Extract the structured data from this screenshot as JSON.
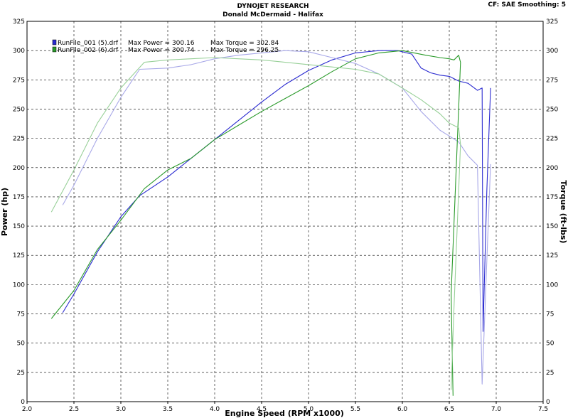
{
  "header": {
    "company": "DYNOJET RESEARCH",
    "customer": "Donald McDermaid - Halifax",
    "info": "CF: SAE  Smoothing: 5"
  },
  "legend": [
    {
      "file": "RunFile_001 (5).drf",
      "power_text": "Max Power = 300.16",
      "torque_text": "Max Torque = 302.84",
      "color": "#2a2ad0"
    },
    {
      "file": "RunFile_002 (6).drf",
      "power_text": "Max Power = 300.74",
      "torque_text": "Max Torque = 296.25",
      "color": "#2a9a2a"
    }
  ],
  "chart_data": {
    "type": "line",
    "xlabel": "Engine Speed (RPM x1000)",
    "ylabel": "Power (hp)",
    "y2label": "Torque (ft-lbs)",
    "xlim": [
      2.0,
      7.5
    ],
    "ylim": [
      0,
      325
    ],
    "y2lim": [
      0,
      325
    ],
    "x_ticks": [
      "2.0",
      "2.5",
      "3.0",
      "3.5",
      "4.0",
      "4.5",
      "5.0",
      "5.5",
      "6.0",
      "6.5",
      "7.0",
      "7.5"
    ],
    "y_ticks": [
      "0",
      "25",
      "50",
      "75",
      "100",
      "125",
      "150",
      "175",
      "200",
      "225",
      "250",
      "275",
      "300",
      "325"
    ],
    "grid": true,
    "series": [
      {
        "name": "RunFile_001 (5).drf",
        "measure": "power",
        "color": "#2a2ad0",
        "points": [
          [
            2.38,
            76
          ],
          [
            2.5,
            92
          ],
          [
            2.75,
            128
          ],
          [
            3.0,
            158
          ],
          [
            3.2,
            176
          ],
          [
            3.5,
            192
          ],
          [
            3.75,
            208
          ],
          [
            4.0,
            224
          ],
          [
            4.25,
            240
          ],
          [
            4.5,
            256
          ],
          [
            4.75,
            271
          ],
          [
            5.0,
            283
          ],
          [
            5.25,
            292
          ],
          [
            5.5,
            298
          ],
          [
            5.75,
            300
          ],
          [
            5.95,
            300
          ],
          [
            6.1,
            297
          ],
          [
            6.2,
            285
          ],
          [
            6.3,
            281
          ],
          [
            6.4,
            279
          ],
          [
            6.5,
            278
          ],
          [
            6.6,
            274
          ],
          [
            6.7,
            272
          ],
          [
            6.8,
            266
          ],
          [
            6.85,
            268
          ],
          [
            6.86,
            60
          ],
          [
            6.9,
            180
          ],
          [
            6.94,
            268
          ]
        ]
      },
      {
        "name": "RunFile_001 (5).drf",
        "measure": "torque",
        "color": "#a8a8e8",
        "points": [
          [
            2.38,
            168
          ],
          [
            2.5,
            185
          ],
          [
            2.75,
            225
          ],
          [
            3.0,
            260
          ],
          [
            3.2,
            284
          ],
          [
            3.5,
            285
          ],
          [
            3.75,
            288
          ],
          [
            4.0,
            293
          ],
          [
            4.25,
            296
          ],
          [
            4.5,
            298
          ],
          [
            4.75,
            300
          ],
          [
            5.0,
            299
          ],
          [
            5.25,
            294
          ],
          [
            5.5,
            289
          ],
          [
            5.75,
            280
          ],
          [
            6.0,
            268
          ],
          [
            6.2,
            248
          ],
          [
            6.4,
            232
          ],
          [
            6.6,
            222
          ],
          [
            6.7,
            210
          ],
          [
            6.8,
            202
          ],
          [
            6.85,
            15
          ],
          [
            6.9,
            120
          ],
          [
            6.94,
            203
          ]
        ]
      },
      {
        "name": "RunFile_002 (6).drf",
        "measure": "power",
        "color": "#2a9a2a",
        "points": [
          [
            2.26,
            71
          ],
          [
            2.5,
            95
          ],
          [
            2.75,
            130
          ],
          [
            3.0,
            155
          ],
          [
            3.25,
            182
          ],
          [
            3.5,
            198
          ],
          [
            3.75,
            208
          ],
          [
            4.0,
            224
          ],
          [
            4.25,
            236
          ],
          [
            4.5,
            248
          ],
          [
            4.75,
            259
          ],
          [
            5.0,
            270
          ],
          [
            5.25,
            282
          ],
          [
            5.5,
            293
          ],
          [
            5.75,
            298
          ],
          [
            6.0,
            300
          ],
          [
            6.25,
            296
          ],
          [
            6.4,
            294
          ],
          [
            6.5,
            293
          ],
          [
            6.55,
            292
          ],
          [
            6.6,
            296
          ],
          [
            6.62,
            290
          ],
          [
            6.52,
            92
          ],
          [
            6.54,
            5
          ]
        ]
      },
      {
        "name": "RunFile_002 (6).drf",
        "measure": "torque",
        "color": "#98d098",
        "points": [
          [
            2.26,
            162
          ],
          [
            2.5,
            198
          ],
          [
            2.75,
            238
          ],
          [
            3.0,
            268
          ],
          [
            3.25,
            290
          ],
          [
            3.5,
            292
          ],
          [
            3.75,
            293
          ],
          [
            4.0,
            294
          ],
          [
            4.25,
            293
          ],
          [
            4.5,
            292
          ],
          [
            4.75,
            290
          ],
          [
            5.0,
            288
          ],
          [
            5.25,
            286
          ],
          [
            5.5,
            284
          ],
          [
            5.75,
            280
          ],
          [
            6.0,
            268
          ],
          [
            6.2,
            258
          ],
          [
            6.4,
            246
          ],
          [
            6.5,
            238
          ],
          [
            6.6,
            234
          ],
          [
            6.62,
            220
          ],
          [
            6.55,
            80
          ],
          [
            6.52,
            10
          ]
        ]
      }
    ]
  }
}
